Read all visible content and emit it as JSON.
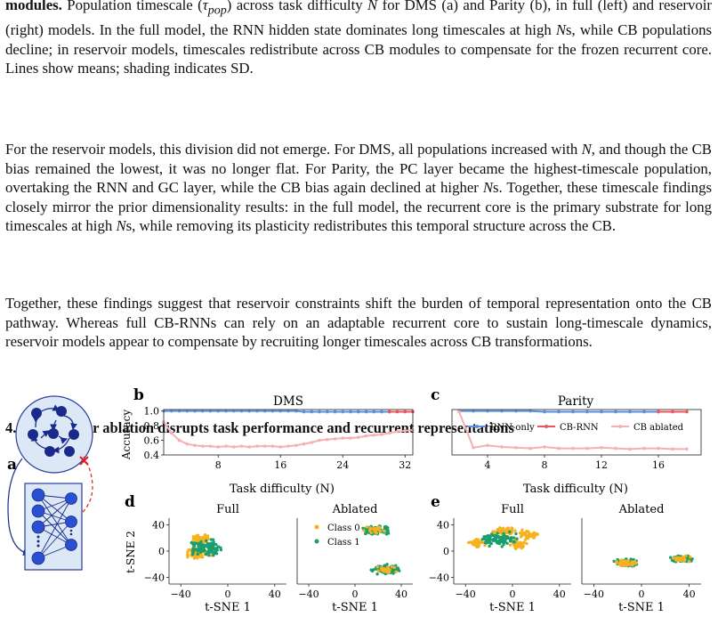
{
  "caption": {
    "lead": "modules.",
    "text_html": " Population timescale (<i>τ<sub>pop</sub></i>) across task difficulty <i>N</i> for DMS (a) and Parity (b), in full (left) and reservoir (right) models. In the full model, the RNN hidden state dominates long timescales at high <i>N</i>s, while CB populations decline; in reservoir models, timescales redistribute across CB modules to compensate for the frozen recurrent core. Lines show means; shading indicates SD."
  },
  "paragraph1_html": "For the reservoir models, this division did not emerge. For DMS, all populations increased with <i>N</i>, and though the CB bias remained the lowest, it was no longer flat. For Parity, the PC layer became the highest-timescale population, overtaking the RNN and GC layer, while the CB bias again declined at higher <i>N</i>s. Together, these timescale findings closely mirror the prior dimensionality results: in the full model, the recurrent core is the primary substrate for long timescales at high <i>N</i>s, while removing its plasticity redistributes this temporal structure across the CB.",
  "paragraph2": "Together, these findings suggest that reservoir constraints shift the burden of temporal representation onto the CB pathway. Whereas full CB-RNNs can rely on an adaptable recurrent core to sustain long-timescale dynamics, reservoir models appear to compensate by recruiting longer timescales across CB transformations.",
  "section": {
    "number": "4.5",
    "title": "Cerebellar ablation disrupts task performance and recurrent representations"
  },
  "figure": {
    "panel_letters": [
      "a",
      "b",
      "c",
      "d",
      "e"
    ],
    "colors": {
      "rnn_only": "#5b8fe0",
      "cb_rnn": "#e8595f",
      "cb_ablated": "#f4b0b2",
      "class0": "#f6b21e",
      "class1": "#1a9e6e",
      "node": "#1a2a8a",
      "circle_fill": "#dde8f7",
      "box_fill": "#dde8f7",
      "ablation_mark": "#e02020"
    },
    "scatter_titles": {
      "full": "Full",
      "ablated": "Ablated"
    },
    "scatter_legend": [
      "Class 0",
      "Class 1"
    ],
    "scatter_xlabel": "t-SNE 1",
    "scatter_ylabel": "t-SNE 2",
    "scatter_yticks": [
      "40",
      "0",
      "−40"
    ],
    "scatter_xticks": [
      "−40",
      "0",
      "40"
    ]
  },
  "chart_data": [
    {
      "panel": "b",
      "type": "line",
      "title": "DMS",
      "xlabel": "Task difficulty (N)",
      "ylabel": "Accuracy",
      "xlim": [
        1,
        33
      ],
      "ylim": [
        0.4,
        1.02
      ],
      "xticks": [
        8,
        16,
        24,
        32
      ],
      "yticks": [
        0.4,
        0.6,
        0.8,
        1.0
      ],
      "series": [
        {
          "key": "rnn_only",
          "x": [
            1,
            2,
            3,
            4,
            5,
            6,
            7,
            8,
            9,
            10,
            11,
            12,
            13,
            14,
            15,
            16,
            17,
            18,
            19,
            20,
            21,
            22,
            23,
            24,
            25,
            26,
            27,
            28,
            29,
            30
          ],
          "values": [
            1.0,
            1.0,
            1.0,
            1.0,
            1.0,
            1.0,
            1.0,
            1.0,
            1.0,
            1.0,
            1.0,
            1.0,
            1.0,
            1.0,
            1.0,
            1.0,
            1.0,
            1.0,
            0.99,
            0.99,
            0.99,
            0.99,
            0.99,
            0.99,
            0.99,
            0.99,
            0.99,
            0.99,
            0.99,
            0.99
          ]
        },
        {
          "key": "cb_rnn",
          "x": [
            30,
            31,
            32,
            33
          ],
          "values": [
            0.99,
            0.99,
            0.99,
            0.99
          ]
        },
        {
          "key": "cb_ablated",
          "x": [
            1,
            2,
            3,
            4,
            5,
            6,
            7,
            8,
            9,
            10,
            11,
            12,
            13,
            14,
            15,
            16,
            17,
            18,
            19,
            20,
            21,
            22,
            23,
            24,
            25,
            26,
            27,
            28,
            29,
            30,
            31,
            32,
            33
          ],
          "values": [
            0.85,
            0.7,
            0.6,
            0.55,
            0.53,
            0.52,
            0.52,
            0.51,
            0.52,
            0.51,
            0.52,
            0.51,
            0.52,
            0.52,
            0.52,
            0.51,
            0.52,
            0.53,
            0.55,
            0.57,
            0.6,
            0.61,
            0.62,
            0.63,
            0.63,
            0.64,
            0.66,
            0.67,
            0.68,
            0.7,
            0.72,
            0.73,
            0.74
          ]
        }
      ]
    },
    {
      "panel": "c",
      "type": "line",
      "title": "Parity",
      "xlabel": "Task difficulty (N)",
      "ylabel": "",
      "xlim": [
        1.5,
        19
      ],
      "ylim": [
        0.4,
        1.02
      ],
      "xticks": [
        4,
        8,
        12,
        16
      ],
      "yticks": [],
      "legend": [
        "RNN-only",
        "CB-RNN",
        "CB ablated"
      ],
      "series": [
        {
          "key": "rnn_only",
          "x": [
            2,
            3,
            4,
            5,
            6,
            7,
            8,
            9,
            10,
            11,
            12,
            13,
            14,
            15,
            16
          ],
          "values": [
            1.0,
            1.0,
            1.0,
            1.0,
            1.0,
            1.0,
            0.99,
            0.99,
            0.99,
            0.99,
            0.99,
            0.99,
            0.99,
            0.99,
            0.99
          ]
        },
        {
          "key": "cb_rnn",
          "x": [
            16,
            17,
            18
          ],
          "values": [
            0.99,
            0.99,
            0.99
          ]
        },
        {
          "key": "cb_ablated",
          "x": [
            2,
            3,
            4,
            5,
            6,
            7,
            8,
            9,
            10,
            11,
            12,
            13,
            14,
            15,
            16,
            17,
            18
          ],
          "values": [
            0.99,
            0.5,
            0.53,
            0.51,
            0.5,
            0.49,
            0.51,
            0.49,
            0.49,
            0.49,
            0.5,
            0.49,
            0.48,
            0.49,
            0.49,
            0.48,
            0.48
          ]
        }
      ]
    }
  ]
}
